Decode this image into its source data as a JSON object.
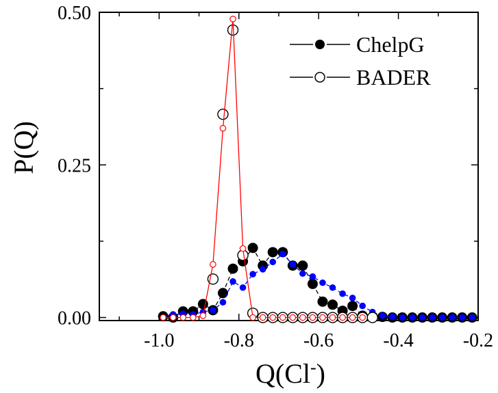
{
  "chart_data": {
    "type": "scatter",
    "xlabel": "Q(Cl",
    "xlabel_sup": "-",
    "xlabel_close": ")",
    "ylabel": "P(Q)",
    "xlim": [
      -1.15,
      -0.2
    ],
    "ylim": [
      -0.005,
      0.5
    ],
    "x_ticks": [
      -1.0,
      -0.8,
      -0.6,
      -0.4,
      -0.2
    ],
    "x_tick_labels": [
      "-1.0",
      "-0.8",
      "-0.6",
      "-0.4",
      "-0.2"
    ],
    "y_ticks": [
      0.0,
      0.25,
      0.5
    ],
    "y_tick_labels": [
      "0.00",
      "0.25",
      "0.50"
    ],
    "legend_position": "top-right",
    "series": [
      {
        "name": "ChelpG",
        "marker": "filled-circle-large",
        "color": "#000000",
        "line": "dashed",
        "x": [
          -0.99,
          -0.965,
          -0.94,
          -0.915,
          -0.89,
          -0.865,
          -0.84,
          -0.815,
          -0.79,
          -0.765,
          -0.74,
          -0.715,
          -0.69,
          -0.665,
          -0.64,
          -0.615,
          -0.59,
          -0.565,
          -0.54,
          -0.515,
          -0.49,
          -0.465,
          -0.44,
          -0.415,
          -0.39,
          -0.365,
          -0.34,
          -0.315,
          -0.29,
          -0.265,
          -0.24,
          -0.215
        ],
        "y": [
          0.002,
          0.0,
          0.01,
          0.01,
          0.022,
          0.012,
          0.04,
          0.08,
          0.092,
          0.114,
          0.085,
          0.107,
          0.107,
          0.085,
          0.085,
          0.055,
          0.026,
          0.021,
          0.011,
          0.019,
          0.003,
          0.001,
          0.001,
          0.0,
          0.0,
          0.0,
          0.0,
          0.0,
          0.0,
          0.0,
          0.0,
          0.0
        ]
      },
      {
        "name": "",
        "marker": "filled-circle-small",
        "color": "#0000ff",
        "line": "dashed",
        "x": [
          -0.99,
          -0.965,
          -0.94,
          -0.915,
          -0.89,
          -0.865,
          -0.84,
          -0.815,
          -0.79,
          -0.765,
          -0.74,
          -0.715,
          -0.69,
          -0.665,
          -0.64,
          -0.615,
          -0.59,
          -0.565,
          -0.54,
          -0.515,
          -0.49,
          -0.465,
          -0.44,
          -0.415,
          -0.39,
          -0.365,
          -0.34,
          -0.315,
          -0.29,
          -0.265,
          -0.24,
          -0.215
        ],
        "y": [
          0.0,
          0.005,
          0.006,
          0.005,
          0.009,
          0.012,
          0.025,
          0.059,
          0.049,
          0.071,
          0.079,
          0.091,
          0.104,
          0.087,
          0.072,
          0.067,
          0.057,
          0.049,
          0.039,
          0.032,
          0.019,
          0.009,
          0.003,
          0.001,
          0.0,
          0.0,
          0.0,
          0.0,
          0.0,
          0.0,
          0.0,
          0.0
        ]
      },
      {
        "name": "BADER",
        "marker": "open-circle-large",
        "color": "#000000",
        "line": "none",
        "x": [
          -0.865,
          -0.84,
          -0.815,
          -0.79,
          -0.765,
          -0.74,
          -0.715,
          -0.69,
          -0.665,
          -0.64,
          -0.615,
          -0.59,
          -0.565,
          -0.54,
          -0.515,
          -0.49,
          -0.465
        ],
        "y": [
          0.063,
          0.333,
          0.471,
          0.102,
          0.007,
          0.0,
          0.0,
          0.0,
          0.0,
          0.0,
          0.0,
          0.0,
          0.0,
          0.0,
          0.0,
          0.0,
          0.0
        ]
      },
      {
        "name": "",
        "marker": "open-circle-small",
        "color": "#ff0000",
        "line": "solid",
        "x": [
          -0.99,
          -0.965,
          -0.94,
          -0.915,
          -0.89,
          -0.865,
          -0.84,
          -0.815,
          -0.79,
          -0.765,
          -0.74,
          -0.715,
          -0.69,
          -0.665,
          -0.64,
          -0.615,
          -0.59,
          -0.565,
          -0.54,
          -0.515,
          -0.49
        ],
        "y": [
          0.0,
          0.0,
          0.0,
          0.0,
          0.003,
          0.087,
          0.31,
          0.489,
          0.113,
          0.0,
          0.0,
          0.0,
          0.0,
          0.0,
          0.0,
          0.0,
          0.0,
          0.0,
          0.0,
          0.0,
          0.0
        ]
      }
    ]
  }
}
